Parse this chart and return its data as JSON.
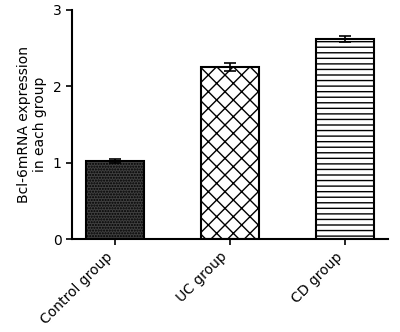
{
  "categories": [
    "Control group",
    "UC group",
    "CD group"
  ],
  "values": [
    1.02,
    2.25,
    2.62
  ],
  "errors": [
    0.03,
    0.05,
    0.04
  ],
  "hatch_patterns": [
    "......",
    "xx",
    "---"
  ],
  "bar_facecolors": [
    "#404040",
    "#ffffff",
    "#ffffff"
  ],
  "bar_edgecolors": [
    "#000000",
    "#000000",
    "#000000"
  ],
  "hatch_colors": [
    "#ffffff",
    "#000000",
    "#000000"
  ],
  "ylabel": "Bcl-6mRNA expression\nin each group",
  "ylim": [
    0,
    3
  ],
  "yticks": [
    0,
    1,
    2,
    3
  ],
  "xlabel": "",
  "title": "",
  "bar_width": 0.5,
  "background_color": "#ffffff",
  "tick_label_rotation": 45,
  "ylabel_fontsize": 10,
  "tick_fontsize": 10
}
